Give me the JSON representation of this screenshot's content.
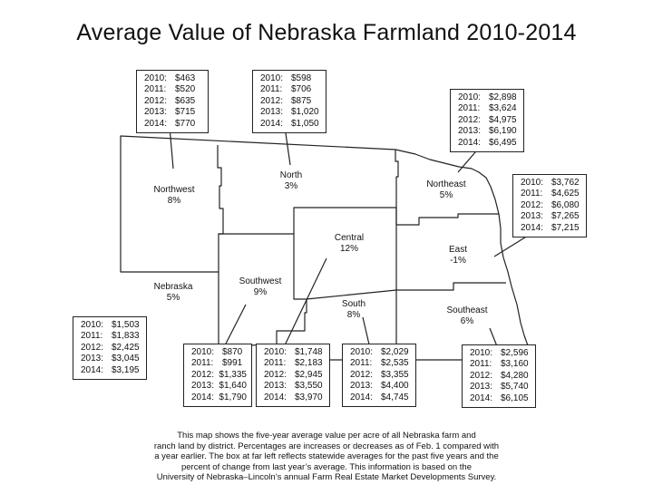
{
  "title": "Average Value of Nebraska Farmland 2010-2014",
  "districts": [
    {
      "id": "northwest",
      "name": "Northwest",
      "pct": "8%",
      "values": [
        [
          "2010:",
          "$463"
        ],
        [
          "2011:",
          "$520"
        ],
        [
          "2012:",
          "$635"
        ],
        [
          "2013:",
          "$715"
        ],
        [
          "2014:",
          "$770"
        ]
      ]
    },
    {
      "id": "north",
      "name": "North",
      "pct": "3%",
      "values": [
        [
          "2010:",
          "$598"
        ],
        [
          "2011:",
          "$706"
        ],
        [
          "2012:",
          "$875"
        ],
        [
          "2013:",
          "$1,020"
        ],
        [
          "2014:",
          "$1,050"
        ]
      ]
    },
    {
      "id": "northeast",
      "name": "Northeast",
      "pct": "5%",
      "values": [
        [
          "2010:",
          "$2,898"
        ],
        [
          "2011:",
          "$3,624"
        ],
        [
          "2012:",
          "$4,975"
        ],
        [
          "2013:",
          "$6,190"
        ],
        [
          "2014:",
          "$6,495"
        ]
      ]
    },
    {
      "id": "east",
      "name": "East",
      "pct": "-1%",
      "values": [
        [
          "2010:",
          "$3,762"
        ],
        [
          "2011:",
          "$4,625"
        ],
        [
          "2012:",
          "$6,080"
        ],
        [
          "2013:",
          "$7,265"
        ],
        [
          "2014:",
          "$7,215"
        ]
      ]
    },
    {
      "id": "central",
      "name": "Central",
      "pct": "12%",
      "values": [
        [
          "2010:",
          "$1,748"
        ],
        [
          "2011:",
          "$2,183"
        ],
        [
          "2012:",
          "$2,945"
        ],
        [
          "2013:",
          "$3,550"
        ],
        [
          "2014:",
          "$3,970"
        ]
      ]
    },
    {
      "id": "southwest",
      "name": "Southwest",
      "pct": "9%",
      "values": [
        [
          "2010:",
          "$870"
        ],
        [
          "2011:",
          "$991"
        ],
        [
          "2012:",
          "$1,335"
        ],
        [
          "2013:",
          "$1,640"
        ],
        [
          "2014:",
          "$1,790"
        ]
      ]
    },
    {
      "id": "south",
      "name": "South",
      "pct": "8%",
      "values": [
        [
          "2010:",
          "$2,029"
        ],
        [
          "2011:",
          "$2,535"
        ],
        [
          "2012:",
          "$3,355"
        ],
        [
          "2013:",
          "$4,400"
        ],
        [
          "2014:",
          "$4,745"
        ]
      ]
    },
    {
      "id": "southeast",
      "name": "Southeast",
      "pct": "6%",
      "values": [
        [
          "2010:",
          "$2,596"
        ],
        [
          "2011:",
          "$3,160"
        ],
        [
          "2012:",
          "$4,280"
        ],
        [
          "2013:",
          "$5,740"
        ],
        [
          "2014:",
          "$6,105"
        ]
      ]
    },
    {
      "id": "nebraska",
      "name": "Nebraska",
      "pct": "5%",
      "values": [
        [
          "2010:",
          "$1,503"
        ],
        [
          "2011:",
          "$1,833"
        ],
        [
          "2012:",
          "$2,425"
        ],
        [
          "2013:",
          "$3,045"
        ],
        [
          "2014:",
          "$3,195"
        ]
      ]
    }
  ],
  "caption_lines": [
    "This map shows the five-year average value per acre of all Nebraska farm and",
    "ranch land by district. Percentages are increases or decreases as of Feb. 1 compared with",
    "a year earlier. The box at far left reflects statewide averages for the past five years and the",
    "percent of change from last year’s average. This information is based on the",
    "University of Nebraska–Lincoln’s annual Farm Real Estate Market Developments Survey."
  ]
}
